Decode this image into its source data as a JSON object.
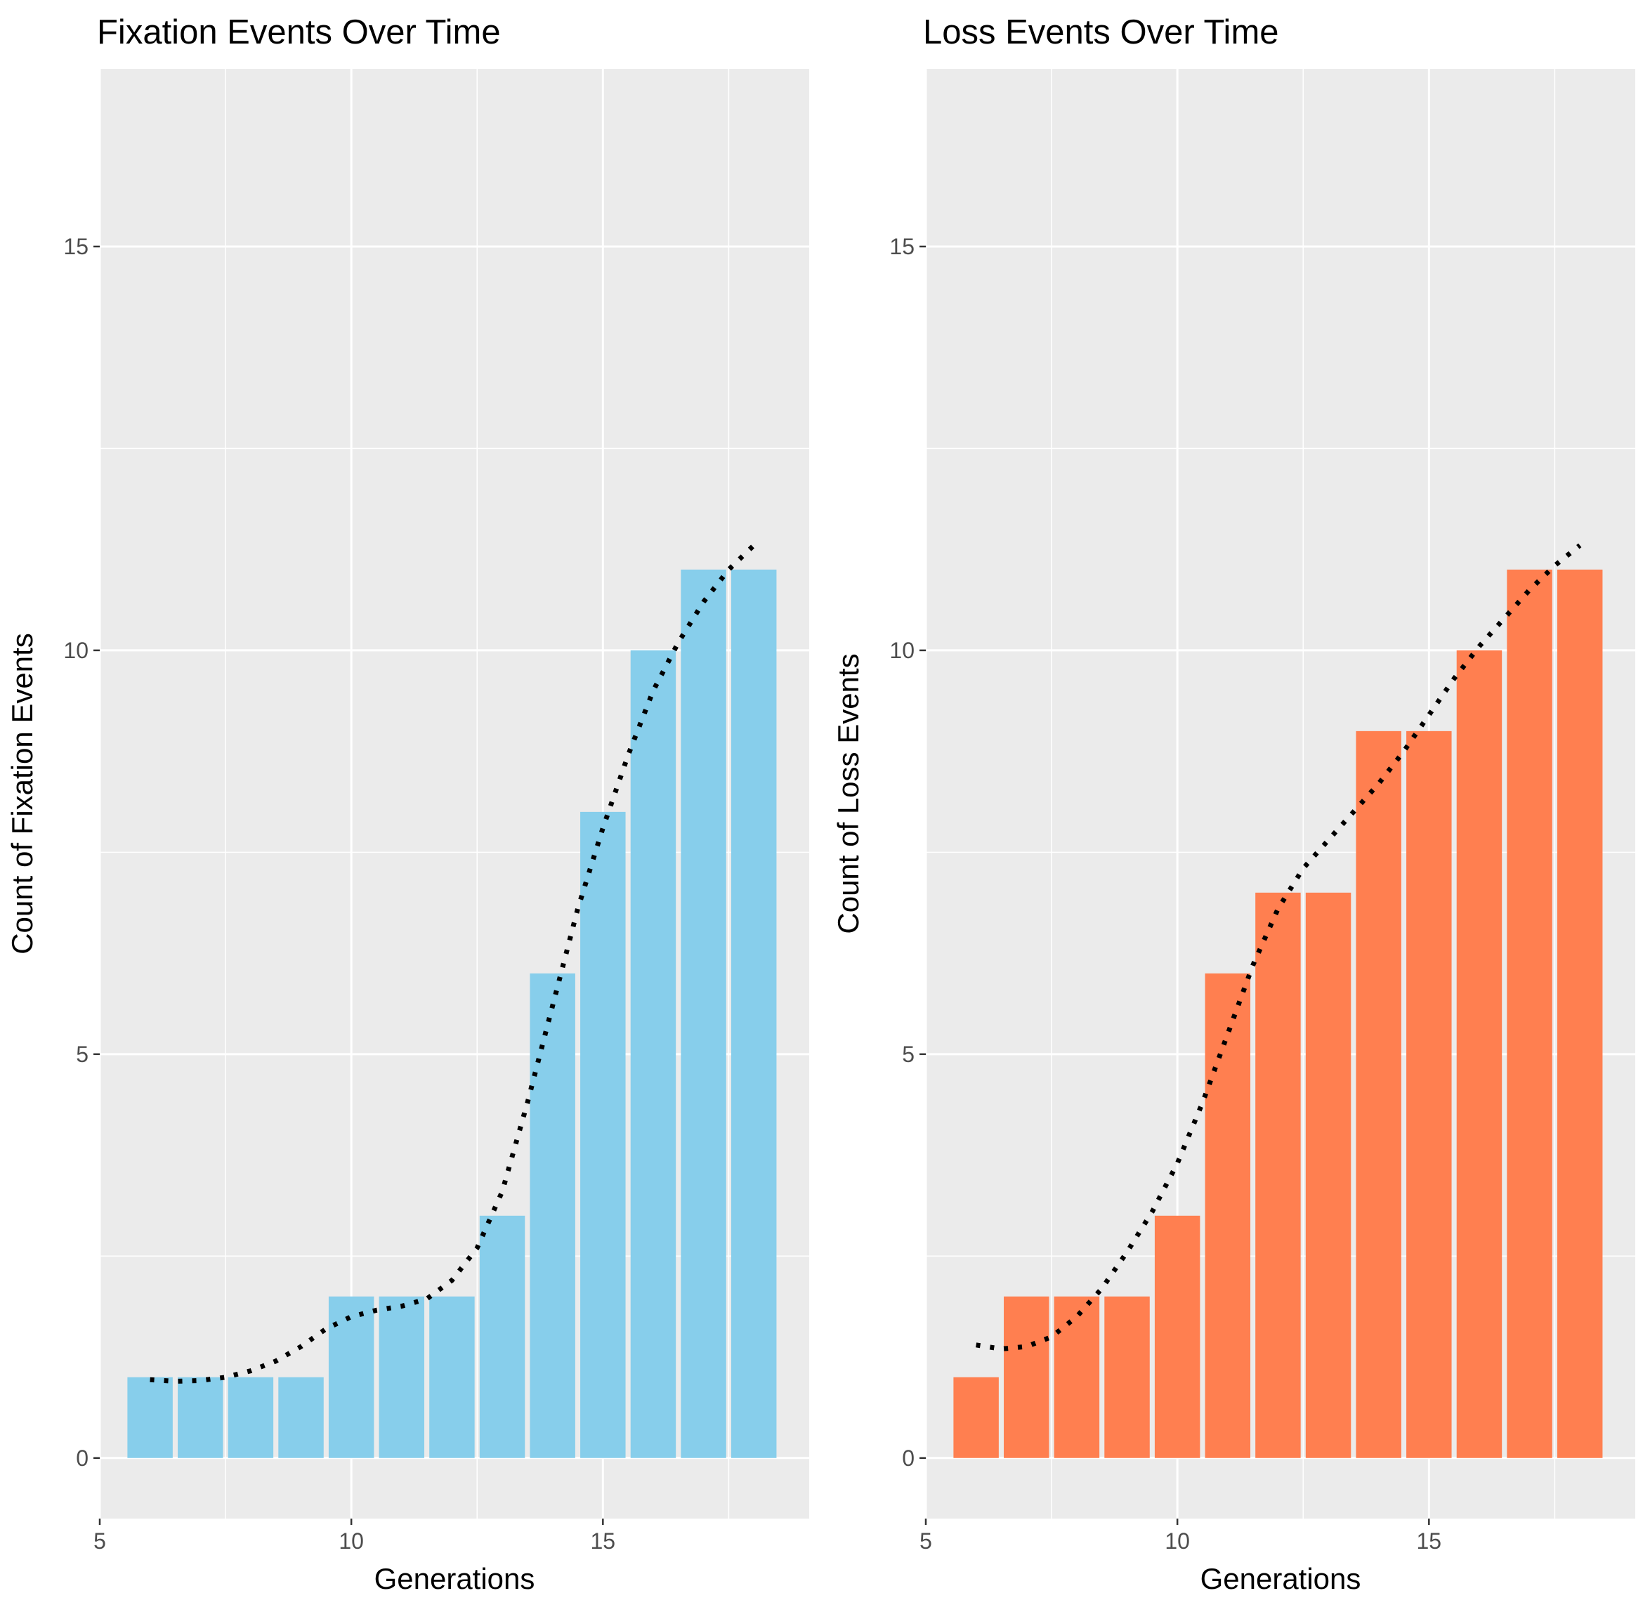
{
  "chart_data": [
    {
      "type": "bar",
      "title": "Fixation Events Over Time",
      "xlabel": "Generations",
      "ylabel": "Count of Fixation Events",
      "x": [
        6,
        7,
        8,
        9,
        10,
        11,
        12,
        13,
        14,
        15,
        16,
        17,
        18
      ],
      "values": [
        1,
        1,
        1,
        1,
        2,
        2,
        2,
        3,
        6,
        8,
        10,
        11,
        11
      ],
      "bar_color": "#87CEEB",
      "trend_line": {
        "style": "dotted",
        "color": "#000000",
        "x": [
          6,
          6.5,
          7,
          7.5,
          8,
          8.5,
          9,
          9.5,
          10,
          10.5,
          11,
          11.5,
          12,
          12.5,
          13,
          13.5,
          14,
          14.5,
          15,
          15.5,
          16,
          16.5,
          17,
          17.5,
          18
        ],
        "y": [
          0.97,
          0.95,
          0.96,
          1.0,
          1.08,
          1.2,
          1.38,
          1.6,
          1.75,
          1.83,
          1.88,
          1.97,
          2.2,
          2.6,
          3.3,
          4.4,
          5.6,
          6.8,
          7.8,
          8.7,
          9.5,
          10.1,
          10.6,
          11.0,
          11.3
        ]
      },
      "xlim": [
        5,
        19.1
      ],
      "ylim": [
        -0.75,
        17.2
      ],
      "xticks": [
        5,
        10,
        15
      ],
      "yticks": [
        0,
        5,
        10,
        15
      ],
      "grid": true
    },
    {
      "type": "bar",
      "title": "Loss Events Over Time",
      "xlabel": "Generations",
      "ylabel": "Count of Loss Events",
      "x": [
        6,
        7,
        8,
        9,
        10,
        11,
        12,
        13,
        14,
        15,
        16,
        17,
        18
      ],
      "values": [
        1,
        2,
        2,
        2,
        3,
        6,
        7,
        7,
        9,
        9,
        10,
        11,
        11
      ],
      "bar_color": "#FF7F50",
      "trend_line": {
        "style": "dotted",
        "color": "#000000",
        "x": [
          6,
          6.5,
          7,
          7.5,
          8,
          8.5,
          9,
          9.5,
          10,
          10.5,
          11,
          11.5,
          12,
          12.5,
          13,
          13.5,
          14,
          14.5,
          15,
          15.5,
          16,
          16.5,
          17,
          17.5,
          18
        ],
        "y": [
          1.4,
          1.35,
          1.38,
          1.5,
          1.75,
          2.1,
          2.55,
          3.05,
          3.65,
          4.4,
          5.25,
          6.1,
          6.8,
          7.3,
          7.65,
          8.0,
          8.35,
          8.75,
          9.2,
          9.65,
          10.05,
          10.4,
          10.75,
          11.05,
          11.3
        ]
      },
      "xlim": [
        5,
        19.1
      ],
      "ylim": [
        -0.75,
        17.2
      ],
      "xticks": [
        5,
        10,
        15
      ],
      "yticks": [
        0,
        5,
        10,
        15
      ],
      "grid": true
    }
  ]
}
